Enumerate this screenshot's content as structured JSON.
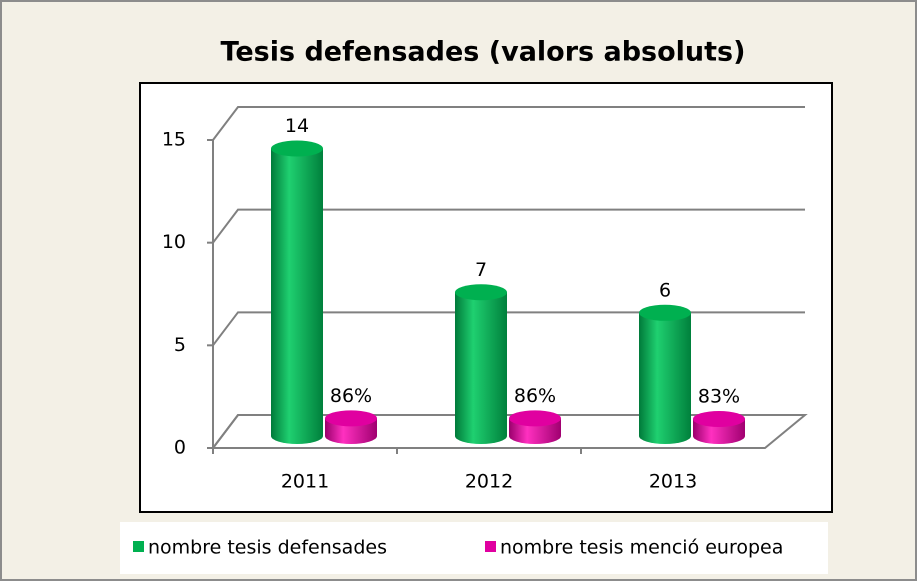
{
  "chart_data": {
    "type": "bar3d",
    "title": "Tesis defensades (valors absoluts)",
    "categories": [
      "2011",
      "2012",
      "2013"
    ],
    "series": [
      {
        "name": "nombre tesis defensades",
        "color": "#00b050",
        "values": [
          14,
          7,
          6
        ]
      },
      {
        "name": "nombre tesis menció europea",
        "color": "#e000a0",
        "values": [
          0.86,
          0.86,
          0.83
        ],
        "value_labels": [
          "86%",
          "86%",
          "83%"
        ]
      }
    ],
    "ylim": [
      0,
      15
    ],
    "yticks": [
      0,
      5,
      10,
      15
    ],
    "grid": true,
    "legend": "bottom"
  }
}
